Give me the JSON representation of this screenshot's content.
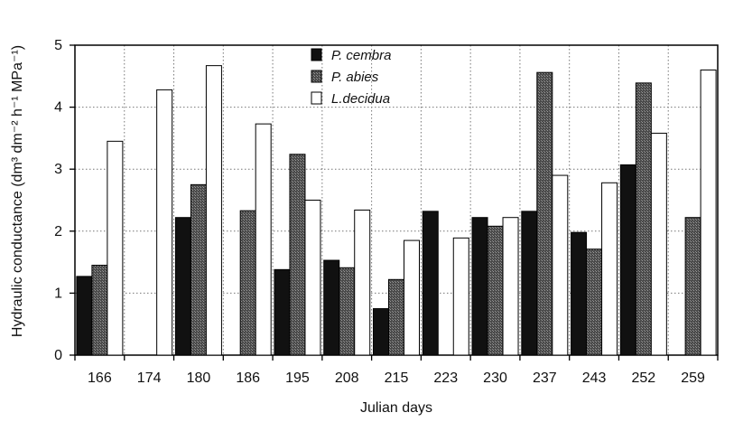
{
  "chart_data": {
    "type": "bar",
    "xlabel": "Julian days",
    "ylabel": "Hydraulic conductance (dm³ dm⁻² h⁻¹ MPa⁻¹)",
    "ylim": [
      0,
      5
    ],
    "yticks": [
      0,
      1,
      2,
      3,
      4,
      5
    ],
    "grid": true,
    "legend_position": "top-center",
    "categories": [
      "166",
      "174",
      "180",
      "186",
      "195",
      "208",
      "215",
      "223",
      "230",
      "237",
      "243",
      "252",
      "259"
    ],
    "series": [
      {
        "name": "P. cembra",
        "color": "#111111",
        "values": [
          1.27,
          null,
          2.22,
          null,
          1.38,
          1.53,
          0.75,
          2.32,
          2.22,
          2.32,
          1.98,
          3.07,
          null
        ]
      },
      {
        "name": "P. abies",
        "color": "#5a5a5a",
        "values": [
          1.45,
          null,
          2.75,
          2.33,
          3.24,
          1.41,
          1.22,
          null,
          2.08,
          4.56,
          1.71,
          4.39,
          2.22
        ]
      },
      {
        "name": "L.decidua",
        "color": "#ffffff",
        "values": [
          3.45,
          4.28,
          4.67,
          3.73,
          2.5,
          2.34,
          1.85,
          1.89,
          2.22,
          2.9,
          2.78,
          3.58,
          4.6
        ]
      }
    ]
  }
}
